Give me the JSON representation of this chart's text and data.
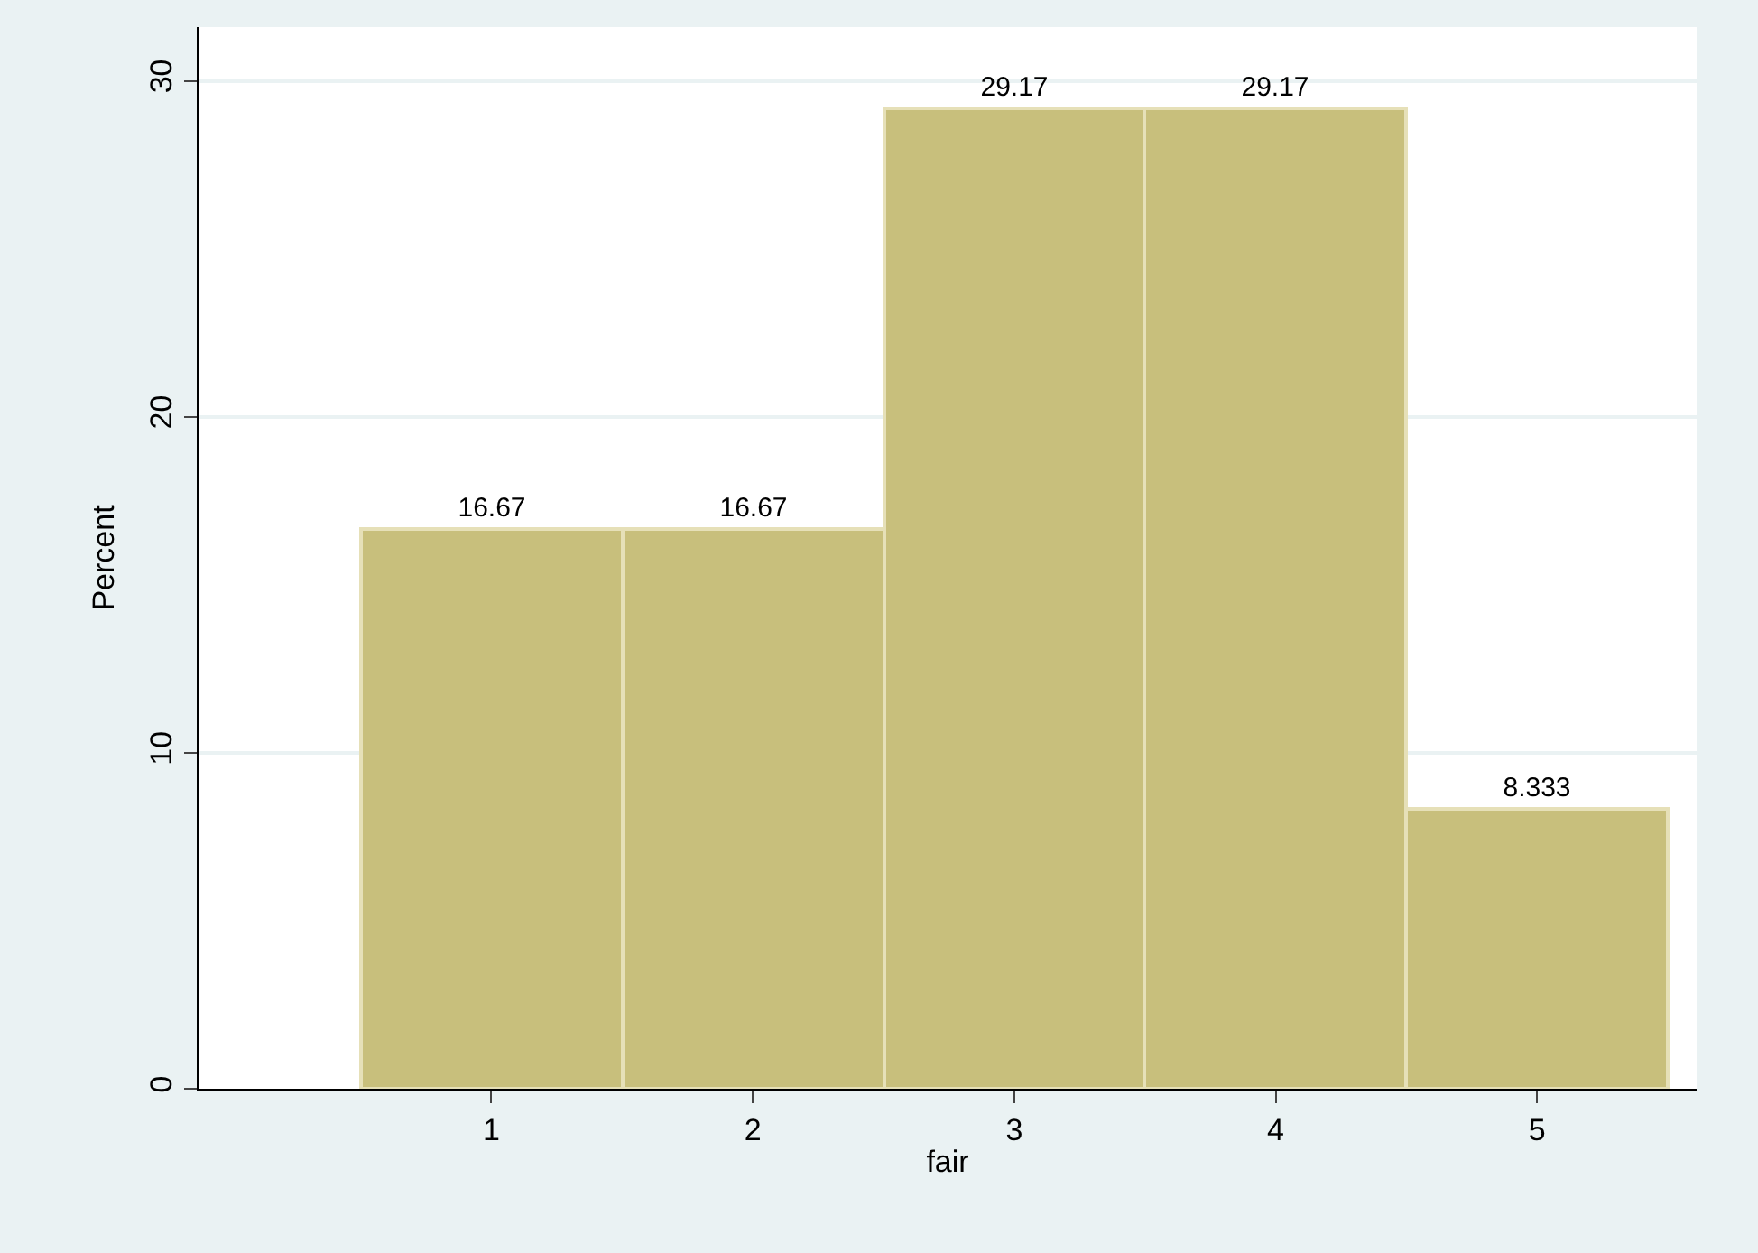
{
  "chart_data": {
    "type": "histogram",
    "xlabel": "fair",
    "ylabel": "Percent",
    "bins": [
      0.5,
      1.5,
      2.5,
      3.5,
      4.5,
      5.5
    ],
    "values": [
      16.67,
      16.67,
      29.17,
      29.17,
      8.333
    ],
    "color": "#c8bf7c",
    "data_labels": true,
    "xlim": [
      -0.12,
      5.61
    ],
    "xticks": [
      1,
      2,
      3,
      4,
      5
    ],
    "ylim": [
      0,
      31.6
    ],
    "yticks": [
      0,
      10,
      20,
      30
    ],
    "grid": "y",
    "legend": false
  }
}
